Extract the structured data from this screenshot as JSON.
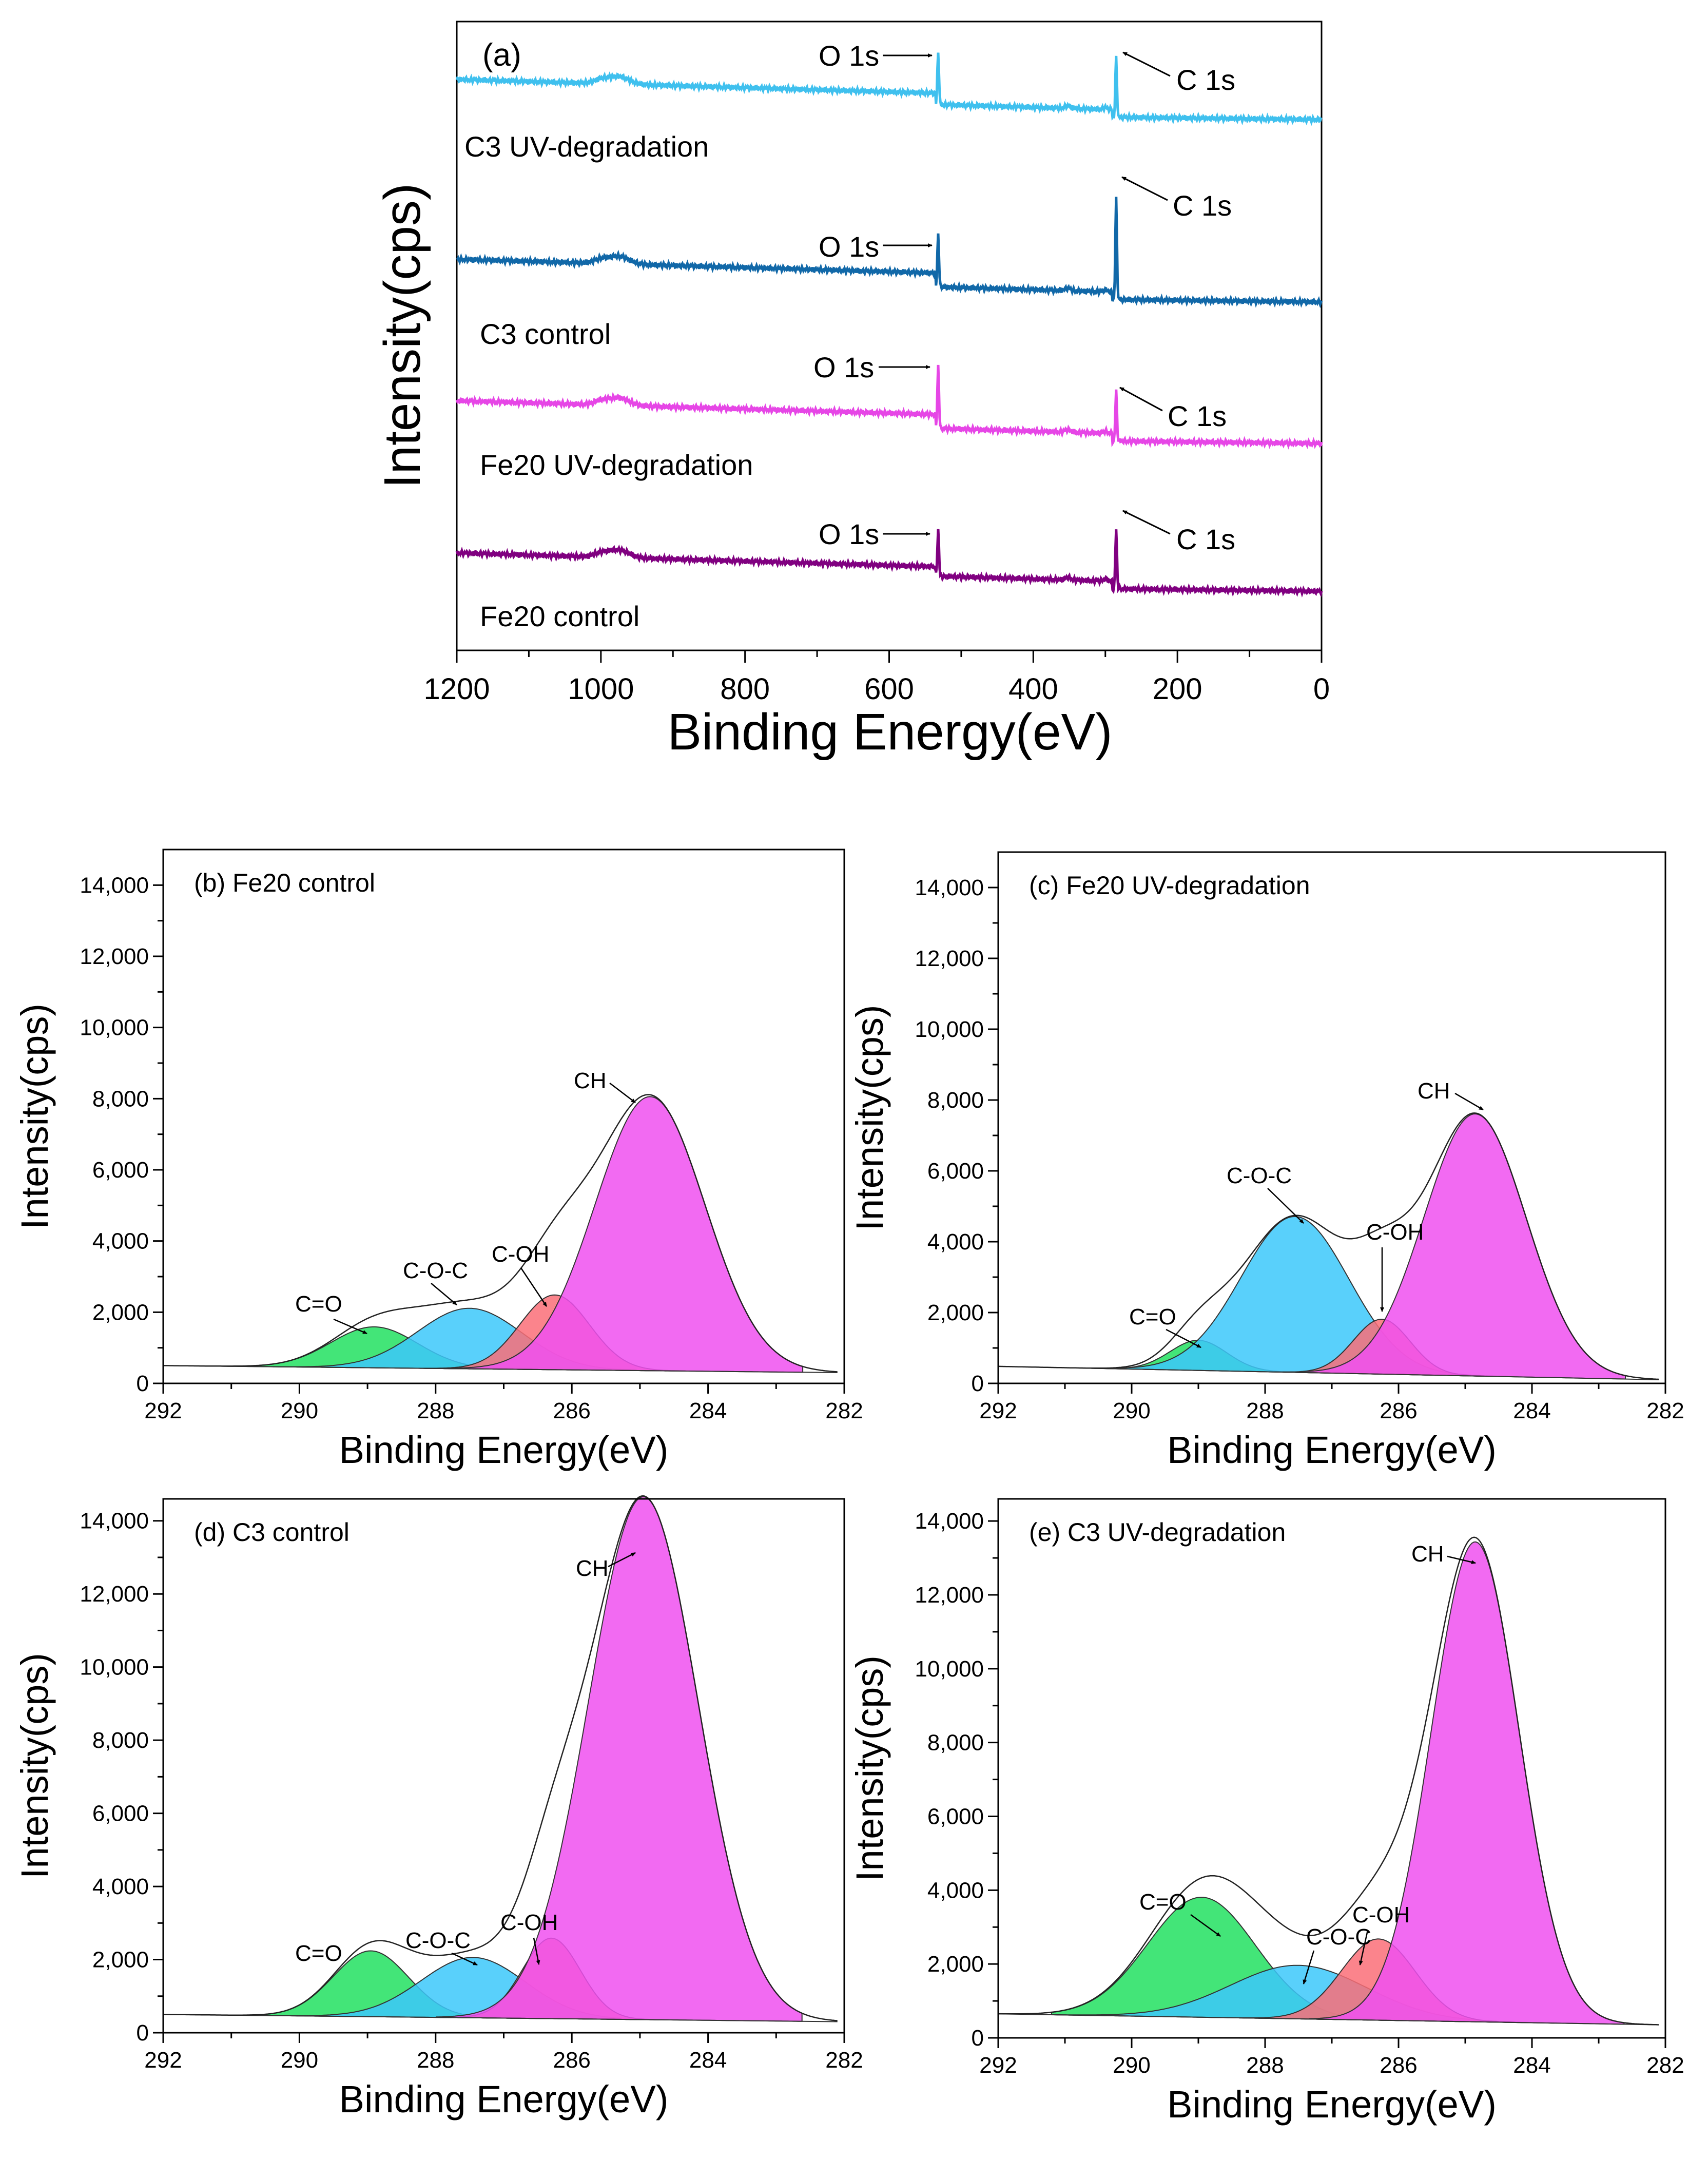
{
  "chart_data": [
    {
      "id": "a",
      "type": "line",
      "panel_label": "(a)",
      "xlabel": "Binding Energy(eV)",
      "ylabel": "Intensity(cps)",
      "xlim": [
        1200,
        0
      ],
      "xticks": [
        1200,
        1000,
        800,
        600,
        400,
        200,
        0
      ],
      "series": [
        {
          "name": "C3 UV-degradation",
          "color": "#3FC0EE",
          "offset": 0.86,
          "amp_o": 0.085,
          "amp_c": 0.095,
          "edge": 0.018
        },
        {
          "name": "C3 control",
          "color": "#1168A8",
          "offset": 0.57,
          "amp_o": 0.085,
          "amp_c": 0.16,
          "edge": 0.022
        },
        {
          "name": "Fe20 UV-degradation",
          "color": "#E646E6",
          "offset": 0.345,
          "amp_o": 0.1,
          "amp_c": 0.08,
          "edge": 0.022
        },
        {
          "name": "Fe20 control",
          "color": "#800080",
          "offset": 0.11,
          "amp_o": 0.075,
          "amp_c": 0.095,
          "edge": 0.015
        }
      ],
      "annotations": {
        "o1s": "O 1s",
        "c1s": "C 1s"
      },
      "peaks": {
        "O 1s": 532,
        "C 1s": 285
      }
    },
    {
      "id": "b",
      "type": "area",
      "title": "(b) Fe20 control",
      "xlabel": "Binding Energy(eV)",
      "ylabel": "Intensity(cps)",
      "xlim": [
        292,
        282
      ],
      "ylim": [
        0,
        15000
      ],
      "xticks": [
        292,
        290,
        288,
        286,
        284,
        282
      ],
      "yticks": [
        0,
        2000,
        4000,
        6000,
        8000,
        10000,
        12000,
        14000
      ],
      "ytick_labels": [
        "0",
        "2,000",
        "4,000",
        "6,000",
        "8,000",
        "10,000",
        "12,000",
        "14,000"
      ],
      "baseline": [
        500,
        300
      ],
      "components": [
        {
          "name": "C=O",
          "center": 288.9,
          "fwhm": 1.5,
          "peak": 1150,
          "color": "#22E060"
        },
        {
          "name": "C-O-C",
          "center": 287.5,
          "fwhm": 1.8,
          "peak": 1700,
          "color": "#3CC8FA"
        },
        {
          "name": "C-OH",
          "center": 286.25,
          "fwhm": 1.2,
          "peak": 2100,
          "color": "#FA6E78"
        },
        {
          "name": "CH",
          "center": 284.85,
          "fwhm": 1.9,
          "peak": 7700,
          "color": "#F050F0"
        }
      ],
      "labels": [
        "C=O",
        "C-O-C",
        "C-OH",
        "CH"
      ]
    },
    {
      "id": "c",
      "type": "area",
      "title": "(c) Fe20 UV-degradation",
      "xlabel": "Binding Energy(eV)",
      "ylabel": "Intensity(cps)",
      "xlim": [
        292,
        282
      ],
      "ylim": [
        0,
        15000
      ],
      "xticks": [
        292,
        290,
        288,
        286,
        284,
        282
      ],
      "yticks": [
        0,
        2000,
        4000,
        6000,
        8000,
        10000,
        12000,
        14000
      ],
      "ytick_labels": [
        "0",
        "2,000",
        "4,000",
        "6,000",
        "8,000",
        "10,000",
        "12,000",
        "14,000"
      ],
      "baseline": [
        480,
        100
      ],
      "components": [
        {
          "name": "C=O",
          "center": 289.0,
          "fwhm": 1.0,
          "peak": 850,
          "color": "#22E060"
        },
        {
          "name": "C-O-C",
          "center": 287.55,
          "fwhm": 1.9,
          "peak": 4400,
          "color": "#3CC8FA"
        },
        {
          "name": "C-OH",
          "center": 286.25,
          "fwhm": 1.0,
          "peak": 1550,
          "color": "#FA6E78"
        },
        {
          "name": "CH",
          "center": 284.85,
          "fwhm": 1.8,
          "peak": 7400,
          "color": "#F050F0"
        }
      ],
      "labels": [
        "C=O",
        "C-O-C",
        "C-OH",
        "CH"
      ]
    },
    {
      "id": "d",
      "type": "area",
      "title": "(d) C3 control",
      "xlabel": "Binding Energy(eV)",
      "ylabel": "Intensity(cps)",
      "xlim": [
        292,
        282
      ],
      "ylim": [
        0,
        14600
      ],
      "xticks": [
        292,
        290,
        288,
        286,
        284,
        282
      ],
      "yticks": [
        0,
        2000,
        4000,
        6000,
        8000,
        10000,
        12000,
        14000
      ],
      "ytick_labels": [
        "0",
        "2,000",
        "4,000",
        "6,000",
        "8,000",
        "10,000",
        "12,000",
        "14,000"
      ],
      "baseline": [
        500,
        300
      ],
      "components": [
        {
          "name": "C=O",
          "center": 288.95,
          "fwhm": 1.3,
          "peak": 1800,
          "color": "#22E060"
        },
        {
          "name": "C-O-C",
          "center": 287.45,
          "fwhm": 1.8,
          "peak": 1650,
          "color": "#3CC8FA"
        },
        {
          "name": "C-OH",
          "center": 286.3,
          "fwhm": 1.0,
          "peak": 2200,
          "color": "#FA6E78"
        },
        {
          "name": "CH",
          "center": 284.95,
          "fwhm": 1.9,
          "peak": 14300,
          "color": "#F050F0"
        }
      ],
      "labels": [
        "C=O",
        "C-O-C",
        "C-OH",
        "CH"
      ]
    },
    {
      "id": "e",
      "type": "area",
      "title": "(e) C3 UV-degradation",
      "xlabel": "Binding Energy(eV)",
      "ylabel": "Intensity(cps)",
      "xlim": [
        292,
        282
      ],
      "ylim": [
        0,
        14600
      ],
      "xticks": [
        292,
        290,
        288,
        286,
        284,
        282
      ],
      "yticks": [
        0,
        2000,
        4000,
        6000,
        8000,
        10000,
        12000,
        14000
      ],
      "ytick_labels": [
        "0",
        "2,000",
        "4,000",
        "6,000",
        "8,000",
        "10,000",
        "12,000",
        "14,000"
      ],
      "baseline": [
        650,
        350
      ],
      "components": [
        {
          "name": "C=O",
          "center": 288.95,
          "fwhm": 1.9,
          "peak": 3250,
          "color": "#22E060"
        },
        {
          "name": "C-O-C",
          "center": 287.5,
          "fwhm": 2.4,
          "peak": 1450,
          "color": "#3CC8FA"
        },
        {
          "name": "C-OH",
          "center": 286.3,
          "fwhm": 1.3,
          "peak": 2200,
          "color": "#FA6E78"
        },
        {
          "name": "CH",
          "center": 284.85,
          "fwhm": 1.55,
          "peak": 13000,
          "color": "#F050F0"
        }
      ],
      "labels": [
        "C=O",
        "C-O-C",
        "C-OH",
        "CH"
      ]
    }
  ]
}
